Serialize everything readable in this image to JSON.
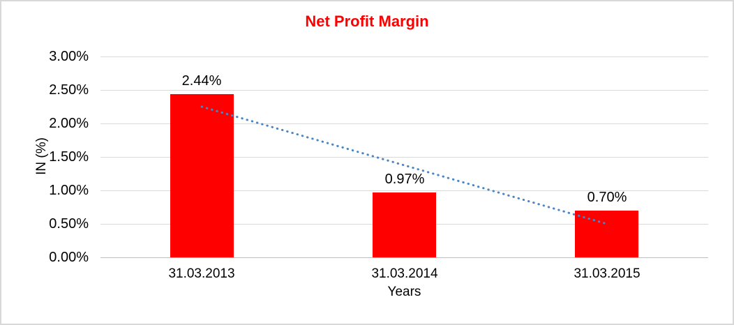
{
  "window": {
    "background_color": "#FFFFFF",
    "border_color": "#D8D8D8"
  },
  "chart_data": {
    "type": "bar",
    "title": "Net Profit Margin",
    "title_color": "#FF0000",
    "xlabel": "Years",
    "ylabel": "IN (%)",
    "categories": [
      "31.03.2013",
      "31.03.2014",
      "31.03.2015"
    ],
    "values": [
      2.44,
      0.97,
      0.7
    ],
    "data_labels": [
      "2.44%",
      "0.97%",
      "0.70%"
    ],
    "ylim": [
      0,
      3
    ],
    "ytick_step": 0.5,
    "ytick_labels": [
      "0.00%",
      "0.50%",
      "1.00%",
      "1.50%",
      "2.00%",
      "2.50%",
      "3.00%"
    ],
    "grid": true,
    "gridline_color": "#D9D9D9",
    "axis_line_color": "#BFBFBF",
    "bar_color": "#FF0000",
    "text_color": "#000000",
    "legend_position": "none",
    "trendline": {
      "type": "linear",
      "style": "dotted",
      "color": "#4A86C6",
      "start_value": 2.25,
      "end_value": 0.5
    }
  }
}
